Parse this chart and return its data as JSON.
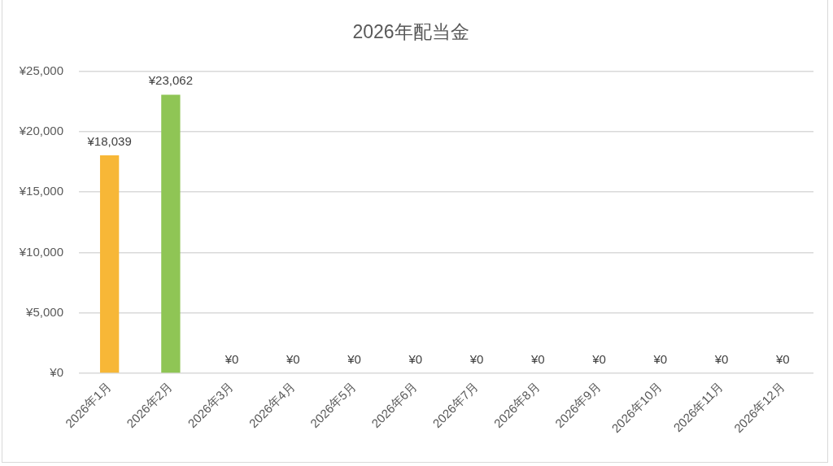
{
  "chart_data": {
    "type": "bar",
    "title": "2026年配当金",
    "categories": [
      "2026年1月",
      "2026年2月",
      "2026年3月",
      "2026年4月",
      "2026年5月",
      "2026年6月",
      "2026年7月",
      "2026年8月",
      "2026年9月",
      "2026年10月",
      "2026年11月",
      "2026年12月"
    ],
    "values": [
      18039,
      23062,
      0,
      0,
      0,
      0,
      0,
      0,
      0,
      0,
      0,
      0
    ],
    "colors": [
      "#f7b737",
      "#8fc555",
      "#f7b737",
      "#8fc555",
      "#f7b737",
      "#8fc555",
      "#f7b737",
      "#8fc555",
      "#f7b737",
      "#8fc555",
      "#f7b737",
      "#8fc555"
    ],
    "value_labels": [
      "¥18,039",
      "¥23,062",
      "¥0",
      "¥0",
      "¥0",
      "¥0",
      "¥0",
      "¥0",
      "¥0",
      "¥0",
      "¥0",
      "¥0"
    ],
    "ylim": [
      0,
      25000
    ],
    "yticks": [
      {
        "value": 0,
        "label": "¥0"
      },
      {
        "value": 5000,
        "label": "¥5,000"
      },
      {
        "value": 10000,
        "label": "¥10,000"
      },
      {
        "value": 15000,
        "label": "¥15,000"
      },
      {
        "value": 20000,
        "label": "¥20,000"
      },
      {
        "value": 25000,
        "label": "¥25,000"
      }
    ],
    "grid": "y"
  }
}
